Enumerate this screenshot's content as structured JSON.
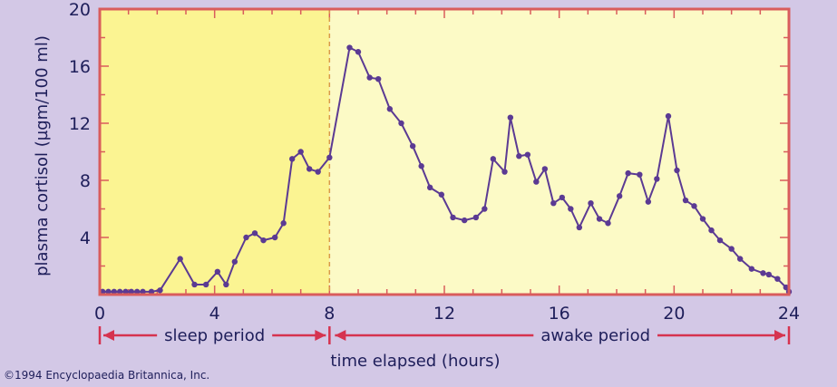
{
  "chart_data": {
    "type": "line",
    "xlabel": "time elapsed (hours)",
    "ylabel": "plasma cortisol (µgm/100 ml)",
    "xlim": [
      0,
      24
    ],
    "ylim": [
      0,
      20
    ],
    "x_ticks": [
      0,
      4,
      8,
      12,
      16,
      20,
      24
    ],
    "y_ticks": [
      4,
      8,
      12,
      16,
      20
    ],
    "periods": [
      {
        "label": "sleep period",
        "from": 0,
        "to": 8
      },
      {
        "label": "awake period",
        "from": 8,
        "to": 24
      }
    ],
    "series": [
      {
        "x": [
          0.1,
          0.3,
          0.5,
          0.7,
          0.9,
          1.1,
          1.3,
          1.5,
          1.8,
          2.1,
          2.8,
          3.3,
          3.7,
          4.1,
          4.4,
          4.7,
          5.1,
          5.4,
          5.7,
          6.1,
          6.4,
          6.7,
          7.0,
          7.3,
          7.6,
          8.0,
          8.7,
          9.0,
          9.4,
          9.7,
          10.1,
          10.5,
          10.9,
          11.2,
          11.5,
          11.9,
          12.3,
          12.7,
          13.1,
          13.4,
          13.7,
          14.1,
          14.3,
          14.6,
          14.9,
          15.2,
          15.5,
          15.8,
          16.1,
          16.4,
          16.7,
          17.1,
          17.4,
          17.7,
          18.1,
          18.4,
          18.8,
          19.1,
          19.4,
          19.8,
          20.1,
          20.4,
          20.7,
          21.0,
          21.3,
          21.6,
          22.0,
          22.3,
          22.7,
          23.1,
          23.3,
          23.6,
          23.9,
          24.0
        ],
        "y": [
          0.2,
          0.2,
          0.2,
          0.2,
          0.2,
          0.2,
          0.2,
          0.2,
          0.2,
          0.3,
          2.5,
          0.7,
          0.7,
          1.6,
          0.7,
          2.3,
          4.0,
          4.3,
          3.8,
          4.0,
          5.0,
          9.5,
          10.0,
          8.8,
          8.6,
          9.6,
          17.3,
          17.0,
          15.2,
          15.1,
          13.0,
          12.0,
          10.4,
          9.0,
          7.5,
          7.0,
          5.4,
          5.2,
          5.4,
          6.0,
          9.5,
          8.6,
          12.4,
          9.7,
          9.8,
          7.9,
          8.8,
          6.4,
          6.8,
          6.0,
          4.7,
          6.4,
          5.3,
          5.0,
          6.9,
          8.5,
          8.4,
          6.5,
          8.1,
          12.5,
          8.7,
          6.6,
          6.2,
          5.3,
          4.5,
          3.8,
          3.2,
          2.5,
          1.8,
          1.5,
          1.4,
          1.1,
          0.5,
          0.2
        ]
      }
    ]
  },
  "copyright": "©1994 Encyclopaedia Britannica, Inc.",
  "colors": {
    "background": "#d3c8e6",
    "sleep_fill": "#fbf492",
    "awake_fill": "#fcfac6",
    "axis": "#d95c5c",
    "line": "#5b3a93",
    "arrow": "#d6334f",
    "text": "#1e1e5a"
  }
}
